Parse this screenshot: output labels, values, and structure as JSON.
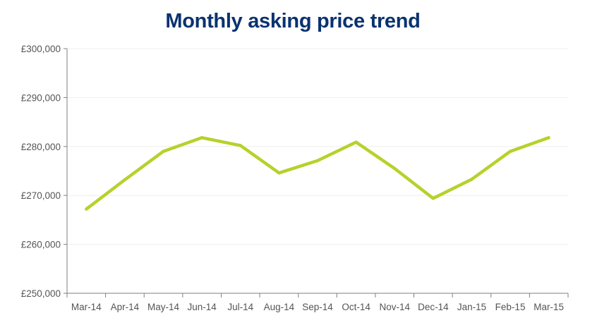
{
  "chart_data": {
    "type": "line",
    "title": "Monthly asking price trend",
    "xlabel": "",
    "ylabel": "",
    "categories": [
      "Mar-14",
      "Apr-14",
      "May-14",
      "Jun-14",
      "Jul-14",
      "Aug-14",
      "Sep-14",
      "Oct-14",
      "Nov-14",
      "Dec-14",
      "Jan-15",
      "Feb-15",
      "Mar-15"
    ],
    "series": [
      {
        "values": [
          267200,
          273200,
          279000,
          281800,
          280200,
          274600,
          277100,
          280900,
          275500,
          269400,
          273300,
          279000,
          281800
        ]
      }
    ],
    "ylim": [
      250000,
      300000
    ],
    "yticks": [
      250000,
      260000,
      270000,
      280000,
      290000,
      300000
    ],
    "ytick_labels": [
      "£250,000",
      "£260,000",
      "£270,000",
      "£280,000",
      "£290,000",
      "£300,000"
    ],
    "grid": true,
    "legend": "none",
    "colors": {
      "title": "#0a3270",
      "line": "#b5d22b",
      "axis": "#7f7f7f",
      "grid": "#eeeeee",
      "tick_text": "#555555"
    }
  }
}
